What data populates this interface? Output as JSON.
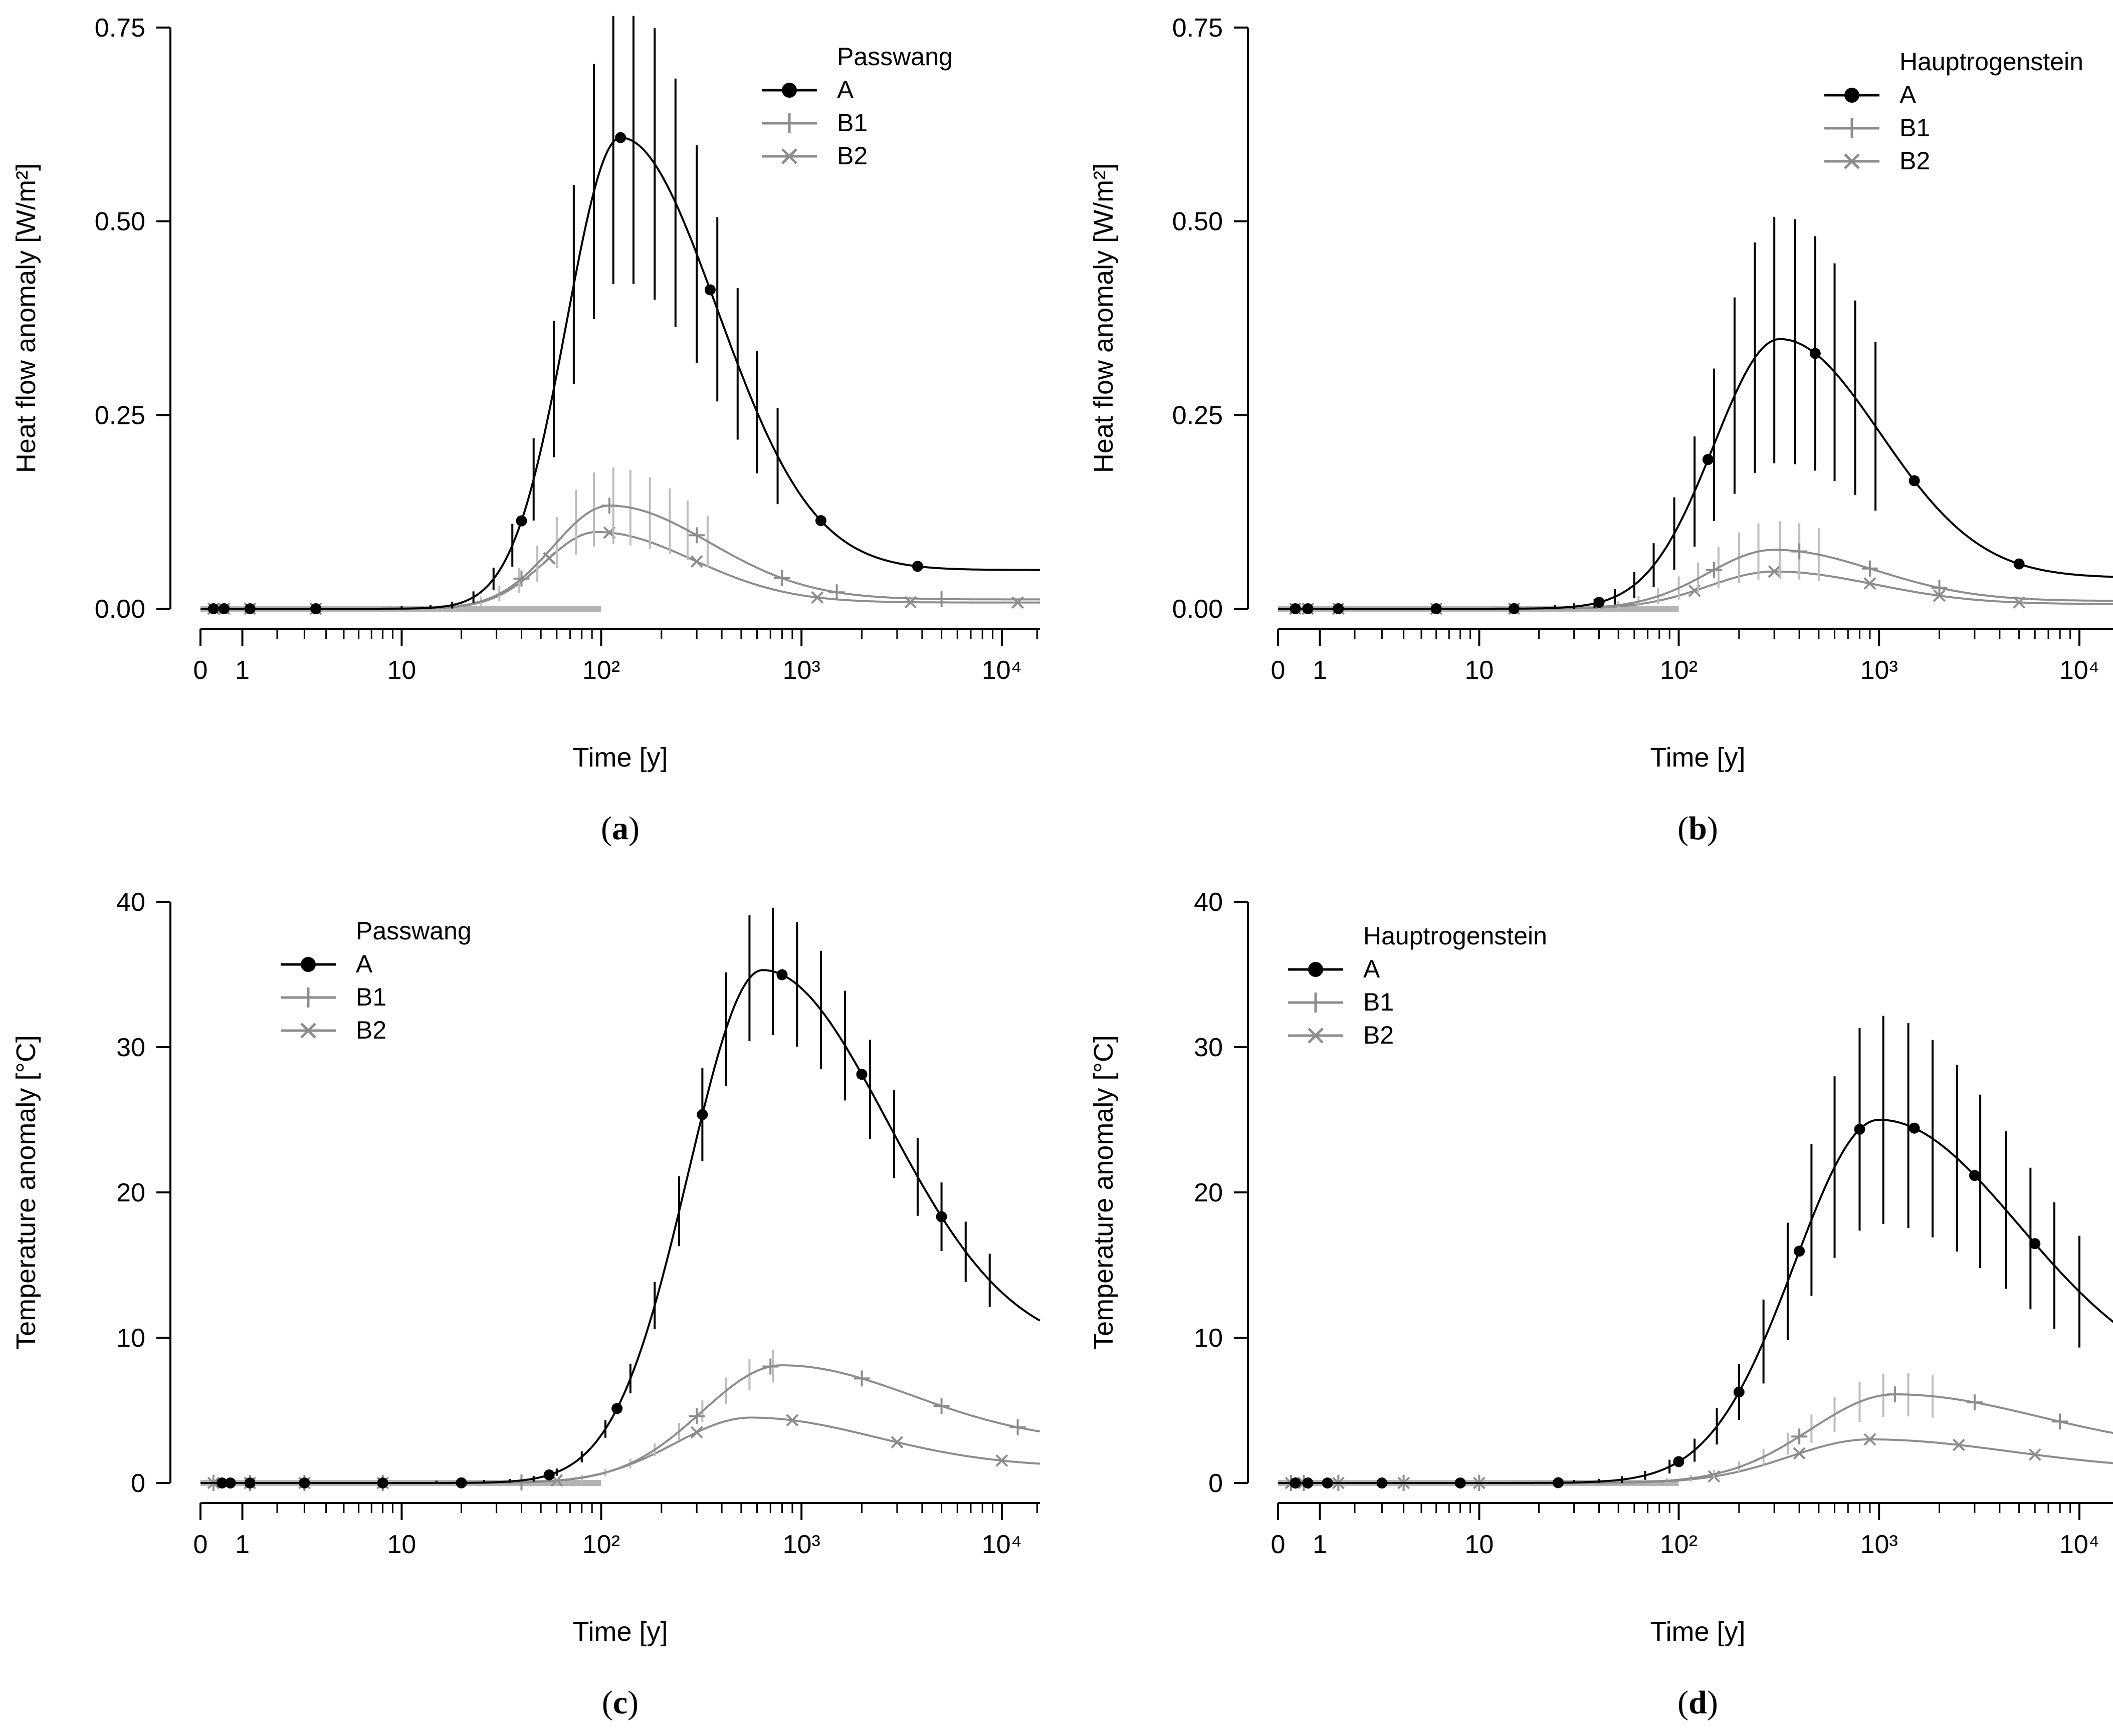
{
  "figure": {
    "panels": [
      "a",
      "b",
      "c",
      "d"
    ]
  },
  "chart_data": [
    {
      "id": "a",
      "type": "line",
      "caption": "a",
      "legend_title": "Passwang",
      "ylabel": "Heat flow anomaly [W/m²]",
      "xlabel": "Time [y]",
      "ylim": [
        0,
        0.75
      ],
      "yticks": [
        0,
        0.25,
        0.5,
        0.75
      ],
      "ytick_labels": [
        "0.00",
        "0.25",
        "0.50",
        "0.75"
      ],
      "xticks": [
        {
          "value": 0,
          "label": "0"
        },
        {
          "value": 1,
          "label": "1"
        },
        {
          "value": 10,
          "label": "10"
        },
        {
          "value": 100,
          "label": "10²"
        },
        {
          "value": 1000,
          "label": "10³"
        },
        {
          "value": 10000,
          "label": "10⁴"
        }
      ],
      "heating_period": [
        0,
        100
      ],
      "series": [
        {
          "name": "A",
          "color": "#000000",
          "marker": "dot",
          "peak_t": 125,
          "peak": 0.608,
          "rise_w": 0.27,
          "tail_w": 0.48,
          "plateau": 0.05,
          "markers_t": [
            0.3,
            0.55,
            1.2,
            3.5,
            40,
            125,
            350,
            1250,
            3800
          ],
          "err_ts": [
            10,
            14,
            18,
            23,
            29,
            36,
            46,
            58,
            73,
            92,
            115,
            145,
            185,
            235,
            300,
            380,
            480,
            600,
            760
          ],
          "err_scale": 0.3
        },
        {
          "name": "B1",
          "color": "#8c8c8c",
          "marker": "plus",
          "peak_t": 110,
          "peak": 0.133,
          "rise_w": 0.28,
          "tail_w": 0.5,
          "plateau": 0.012,
          "markers_t": [
            40,
            110,
            300,
            800,
            1500,
            5000
          ],
          "err_ts": [
            10,
            13,
            16,
            20,
            25,
            31,
            39,
            48,
            60,
            75,
            92,
            115,
            140,
            175,
            220,
            270,
            340
          ],
          "err_scale": 0.35
        },
        {
          "name": "B2",
          "color": "#8c8c8c",
          "marker": "cross",
          "peak_t": 95,
          "peak": 0.099,
          "rise_w": 0.26,
          "tail_w": 0.48,
          "plateau": 0.008,
          "markers_t": [
            0.3,
            0.55,
            1.2,
            3.5,
            55,
            110,
            300,
            1200,
            3500,
            12000
          ],
          "err_ts": [],
          "err_scale": 0
        }
      ]
    },
    {
      "id": "b",
      "type": "line",
      "caption": "b",
      "legend_title": "Hauptrogenstein",
      "ylabel": "Heat flow anomaly [W/m²]",
      "xlabel": "Time [y]",
      "ylim": [
        0,
        0.75
      ],
      "yticks": [
        0,
        0.25,
        0.5,
        0.75
      ],
      "ytick_labels": [
        "0.00",
        "0.25",
        "0.50",
        "0.75"
      ],
      "xticks": [
        {
          "value": 0,
          "label": "0"
        },
        {
          "value": 1,
          "label": "1"
        },
        {
          "value": 10,
          "label": "10"
        },
        {
          "value": 100,
          "label": "10²"
        },
        {
          "value": 1000,
          "label": "10³"
        },
        {
          "value": 10000,
          "label": "10⁴"
        }
      ],
      "heating_period": [
        0,
        100
      ],
      "series": [
        {
          "name": "A",
          "color": "#000000",
          "marker": "dot",
          "peak_t": 320,
          "peak": 0.348,
          "rise_w": 0.33,
          "tail_w": 0.5,
          "plateau": 0.04,
          "markers_t": [
            0.4,
            0.7,
            1.5,
            6,
            15,
            40,
            140,
            480,
            1500,
            5000
          ],
          "err_ts": [
            24,
            30,
            38,
            48,
            60,
            75,
            95,
            120,
            150,
            190,
            240,
            300,
            380,
            480,
            600,
            760,
            960
          ],
          "err_scale": 0.45
        },
        {
          "name": "B1",
          "color": "#8c8c8c",
          "marker": "plus",
          "peak_t": 300,
          "peak": 0.076,
          "rise_w": 0.33,
          "tail_w": 0.5,
          "plateau": 0.01,
          "markers_t": [
            150,
            400,
            900,
            2000
          ],
          "err_ts": [
            40,
            50,
            63,
            79,
            100,
            125,
            158,
            200,
            250,
            320,
            400,
            500
          ],
          "err_scale": 0.45
        },
        {
          "name": "B2",
          "color": "#8c8c8c",
          "marker": "cross",
          "peak_t": 300,
          "peak": 0.048,
          "rise_w": 0.33,
          "tail_w": 0.5,
          "plateau": 0.006,
          "markers_t": [
            0.4,
            0.7,
            1.5,
            6,
            15,
            120,
            300,
            900,
            2000,
            5000
          ],
          "err_ts": [],
          "err_scale": 0
        }
      ]
    },
    {
      "id": "c",
      "type": "line",
      "caption": "c",
      "legend_title": "Passwang",
      "ylabel": "Temperature anomaly [°C]",
      "xlabel": "Time [y]",
      "ylim": [
        0,
        40
      ],
      "yticks": [
        0,
        10,
        20,
        30,
        40
      ],
      "ytick_labels": [
        "0",
        "10",
        "20",
        "30",
        "40"
      ],
      "xticks": [
        {
          "value": 0,
          "label": "0"
        },
        {
          "value": 1,
          "label": "1"
        },
        {
          "value": 10,
          "label": "10"
        },
        {
          "value": 100,
          "label": "10²"
        },
        {
          "value": 1000,
          "label": "10³"
        },
        {
          "value": 10000,
          "label": "10⁴"
        }
      ],
      "heating_period": [
        0,
        100
      ],
      "series": [
        {
          "name": "A",
          "color": "#000000",
          "marker": "dot",
          "peak_t": 640,
          "peak": 35.3,
          "rise_w": 0.37,
          "tail_w": 0.62,
          "plateau": 9.0,
          "markers_t": [
            0.5,
            0.7,
            1.2,
            3,
            8,
            20,
            55,
            120,
            320,
            800,
            2000,
            5000
          ],
          "err_ts": [
            15,
            20,
            26,
            35,
            46,
            60,
            80,
            105,
            140,
            185,
            245,
            320,
            420,
            550,
            720,
            950,
            1250,
            1650,
            2200,
            2900,
            3800,
            5000,
            6600,
            8700
          ],
          "err_scale": 0.12
        },
        {
          "name": "B1",
          "color": "#8c8c8c",
          "marker": "plus",
          "peak_t": 800,
          "peak": 8.1,
          "rise_w": 0.4,
          "tail_w": 0.65,
          "plateau": 2.8,
          "markers_t": [
            0.3,
            1.2,
            3,
            8,
            40,
            300,
            700,
            2000,
            5000,
            12000
          ],
          "err_ts": [
            15,
            20,
            26,
            35,
            46,
            60,
            80,
            105,
            140,
            185,
            245,
            320,
            420,
            550,
            720
          ],
          "err_scale": 0.12
        },
        {
          "name": "B2",
          "color": "#8c8c8c",
          "marker": "cross",
          "peak_t": 560,
          "peak": 4.5,
          "rise_w": 0.38,
          "tail_w": 0.62,
          "plateau": 1.1,
          "markers_t": [
            0.3,
            1.2,
            3,
            8,
            60,
            300,
            900,
            3000,
            10000
          ],
          "err_ts": [],
          "err_scale": 0
        }
      ]
    },
    {
      "id": "d",
      "type": "line",
      "caption": "d",
      "legend_title": "Hauptrogenstein",
      "ylabel": "Temperature anomaly [°C]",
      "xlabel": "Time [y]",
      "ylim": [
        0,
        40
      ],
      "yticks": [
        0,
        10,
        20,
        30,
        40
      ],
      "ytick_labels": [
        "0",
        "10",
        "20",
        "30",
        "40"
      ],
      "xticks": [
        {
          "value": 0,
          "label": "0"
        },
        {
          "value": 1,
          "label": "1"
        },
        {
          "value": 10,
          "label": "10"
        },
        {
          "value": 100,
          "label": "10²"
        },
        {
          "value": 1000,
          "label": "10³"
        },
        {
          "value": 10000,
          "label": "10⁴"
        }
      ],
      "heating_period": [
        0,
        100
      ],
      "series": [
        {
          "name": "A",
          "color": "#000000",
          "marker": "dot",
          "peak_t": 1000,
          "peak": 25.0,
          "rise_w": 0.42,
          "tail_w": 0.7,
          "plateau": 6.5,
          "markers_t": [
            0.4,
            0.7,
            1.2,
            3,
            8,
            25,
            100,
            200,
            400,
            800,
            1500,
            3000,
            6000
          ],
          "err_ts": [
            30,
            40,
            52,
            68,
            90,
            120,
            155,
            200,
            265,
            350,
            460,
            600,
            800,
            1050,
            1400,
            1850,
            2450,
            3200,
            4300,
            5700,
            7500,
            10000
          ],
          "err_scale": 0.28
        },
        {
          "name": "B1",
          "color": "#8c8c8c",
          "marker": "plus",
          "peak_t": 1200,
          "peak": 6.1,
          "rise_w": 0.42,
          "tail_w": 0.72,
          "plateau": 2.2,
          "markers_t": [
            0.3,
            0.6,
            1.5,
            4,
            10,
            400,
            1200,
            3000,
            8000
          ],
          "err_ts": [
            50,
            66,
            87,
            115,
            150,
            200,
            265,
            350,
            460,
            600,
            800,
            1050,
            1400,
            1850
          ],
          "err_scale": 0.22
        },
        {
          "name": "B2",
          "color": "#8c8c8c",
          "marker": "cross",
          "peak_t": 900,
          "peak": 3.0,
          "rise_w": 0.4,
          "tail_w": 0.7,
          "plateau": 0.9,
          "markers_t": [
            0.3,
            0.6,
            1.5,
            4,
            10,
            150,
            400,
            900,
            2500,
            6000
          ],
          "err_ts": [],
          "err_scale": 0
        }
      ]
    }
  ]
}
